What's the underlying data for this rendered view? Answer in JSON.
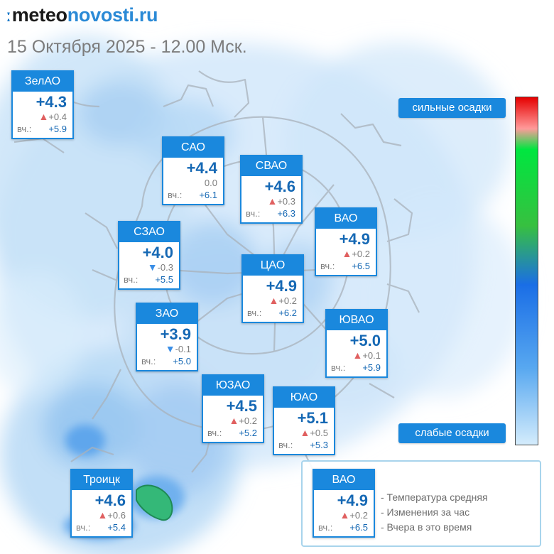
{
  "header": {
    "logo_mark": "ː",
    "logo_dark": "meteo",
    "logo_blue": "novosti.ru",
    "date": "15 Октября 2025 - 12.00 Мск."
  },
  "colors": {
    "card_header": "#1a88dd",
    "temp_text": "#1568b4",
    "arrow_up": "#e06060",
    "arrow_down": "#3a8ee6",
    "gradient": [
      "#e60000",
      "#ff9a9a",
      "#00e640",
      "#1a6ee6",
      "#d4ecfc"
    ]
  },
  "districts": [
    {
      "name": "ЗелАО",
      "temp": "+4.3",
      "trend": "up",
      "arrow": "▲",
      "change": "+0.4",
      "yesterday_label": "вч.:",
      "yesterday": "+5.9"
    },
    {
      "name": "САО",
      "temp": "+4.4",
      "trend": "none",
      "arrow": "",
      "change": "0.0",
      "yesterday_label": "вч.:",
      "yesterday": "+6.1"
    },
    {
      "name": "СВАО",
      "temp": "+4.6",
      "trend": "up",
      "arrow": "▲",
      "change": "+0.3",
      "yesterday_label": "вч.:",
      "yesterday": "+6.3"
    },
    {
      "name": "ВАО",
      "temp": "+4.9",
      "trend": "up",
      "arrow": "▲",
      "change": "+0.2",
      "yesterday_label": "вч.:",
      "yesterday": "+6.5"
    },
    {
      "name": "СЗАО",
      "temp": "+4.0",
      "trend": "down",
      "arrow": "▼",
      "change": "-0.3",
      "yesterday_label": "вч.:",
      "yesterday": "+5.5"
    },
    {
      "name": "ЦАО",
      "temp": "+4.9",
      "trend": "up",
      "arrow": "▲",
      "change": "+0.2",
      "yesterday_label": "вч.:",
      "yesterday": "+6.2"
    },
    {
      "name": "ЗАО",
      "temp": "+3.9",
      "trend": "down",
      "arrow": "▼",
      "change": "-0.1",
      "yesterday_label": "вч.:",
      "yesterday": "+5.0"
    },
    {
      "name": "ЮВАО",
      "temp": "+5.0",
      "trend": "up",
      "arrow": "▲",
      "change": "+0.1",
      "yesterday_label": "вч.:",
      "yesterday": "+5.9"
    },
    {
      "name": "ЮЗАО",
      "temp": "+4.5",
      "trend": "up",
      "arrow": "▲",
      "change": "+0.2",
      "yesterday_label": "вч.:",
      "yesterday": "+5.2"
    },
    {
      "name": "ЮАО",
      "temp": "+5.1",
      "trend": "up",
      "arrow": "▲",
      "change": "+0.5",
      "yesterday_label": "вч.:",
      "yesterday": "+5.3"
    },
    {
      "name": "Троицк",
      "temp": "+4.6",
      "trend": "up",
      "arrow": "▲",
      "change": "+0.6",
      "yesterday_label": "вч.:",
      "yesterday": "+5.4"
    }
  ],
  "scale": {
    "top_label": "сильные осадки",
    "bottom_label": "слабые осадки"
  },
  "legend": {
    "sample": {
      "name": "ВАО",
      "temp": "+4.9",
      "trend": "up",
      "arrow": "▲",
      "change": "+0.2",
      "yesterday_label": "вч.:",
      "yesterday": "+6.5"
    },
    "lines": [
      "- Температура средняя",
      "- Изменения за час",
      "- Вчера в это время"
    ]
  }
}
